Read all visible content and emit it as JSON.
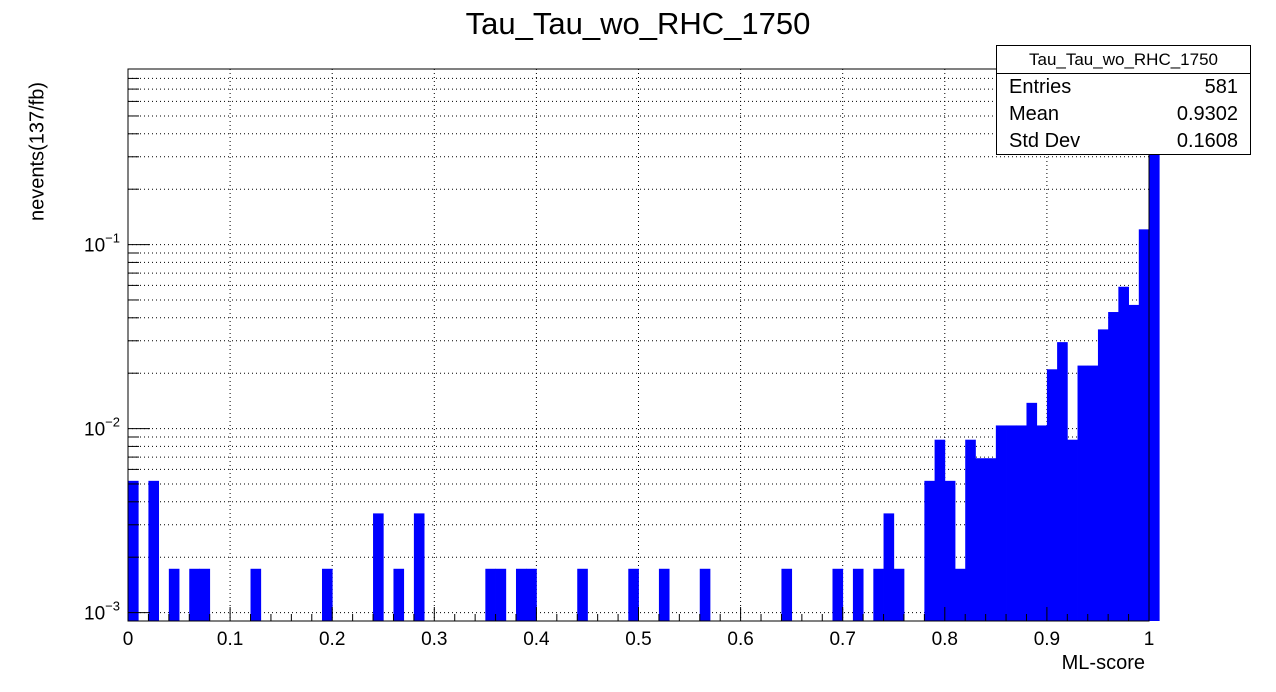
{
  "chart_data": {
    "type": "bar",
    "title": "Tau_Tau_wo_RHC_1750",
    "xlabel": "ML-score",
    "ylabel": "nevents(137/fb)",
    "xlim": [
      0,
      1
    ],
    "ylim": [
      0.0009,
      0.9
    ],
    "yscale": "log",
    "grid": true,
    "bar_color": "#0000ff",
    "x_ticks": [
      "0",
      "0.1",
      "0.2",
      "0.3",
      "0.4",
      "0.5",
      "0.6",
      "0.7",
      "0.8",
      "0.9",
      "1"
    ],
    "y_ticks": [
      {
        "value": 0.001,
        "base": "10",
        "exp": "−3"
      },
      {
        "value": 0.01,
        "base": "10",
        "exp": "−2"
      },
      {
        "value": 0.1,
        "base": "10",
        "exp": "−1"
      }
    ],
    "bin_width": 0.01,
    "values": [
      0.0052,
      0,
      0.0052,
      0,
      0.00173,
      0,
      0.00173,
      0.00173,
      0,
      0,
      0,
      0,
      0.00173,
      0,
      0,
      0,
      0,
      0,
      0,
      0.00173,
      0,
      0,
      0,
      0,
      0.00346,
      0,
      0.00173,
      0,
      0.00346,
      0,
      0,
      0,
      0,
      0,
      0,
      0.00173,
      0.00173,
      0,
      0.00173,
      0.00173,
      0,
      0,
      0,
      0,
      0.00173,
      0,
      0,
      0,
      0,
      0.00173,
      0,
      0,
      0.00173,
      0,
      0,
      0,
      0.00173,
      0,
      0,
      0,
      0,
      0,
      0,
      0,
      0.00173,
      0,
      0,
      0,
      0,
      0.00173,
      0,
      0.00173,
      0,
      0.00173,
      0.00346,
      0.00173,
      0,
      0,
      0.0052,
      0.0087,
      0.0052,
      0.00173,
      0.0087,
      0.0069,
      0.0069,
      0.0104,
      0.0104,
      0.0104,
      0.0138,
      0.0104,
      0.021,
      0.0295,
      0.0087,
      0.022,
      0.022,
      0.0346,
      0.043,
      0.059,
      0.047,
      0.121,
      0.33
    ]
  },
  "stats_box": {
    "title": "Tau_Tau_wo_RHC_1750",
    "rows": [
      {
        "label": "Entries",
        "value": "581"
      },
      {
        "label": "Mean",
        "value": "0.9302"
      },
      {
        "label": "Std Dev",
        "value": "0.1608"
      }
    ]
  }
}
